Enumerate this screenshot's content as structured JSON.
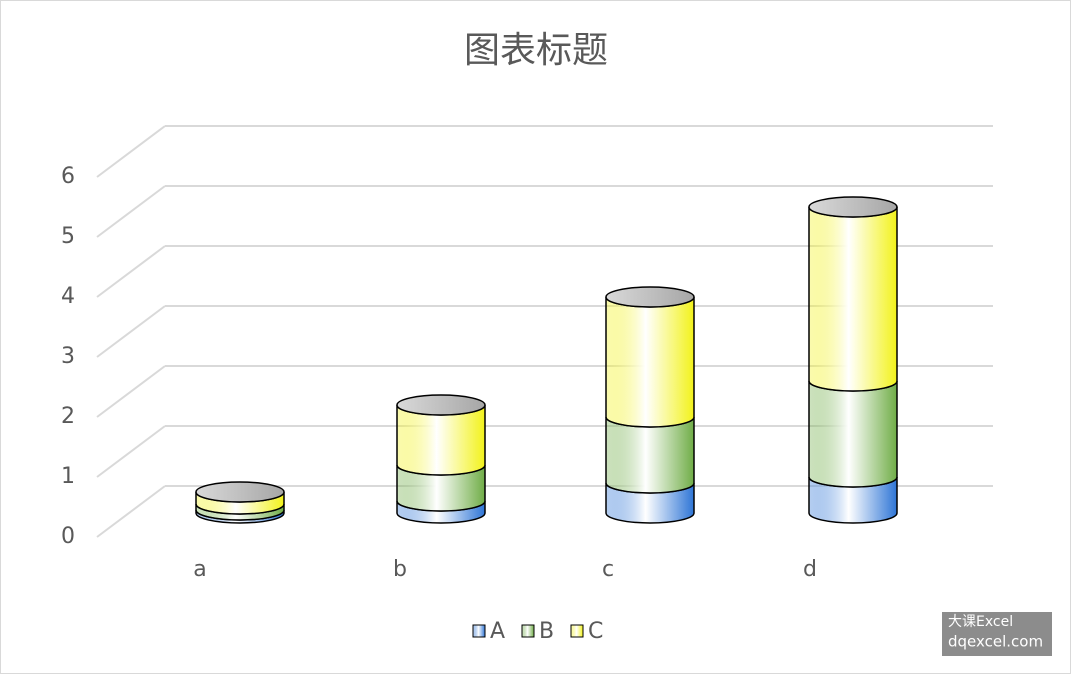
{
  "chart_data": {
    "type": "bar3d_cylinder",
    "title": "图表标题",
    "categories": [
      "a",
      "b",
      "c",
      "d"
    ],
    "series": [
      {
        "name": "A",
        "color": "#2e75d6",
        "values": [
          0.05,
          0.2,
          0.5,
          0.6
        ]
      },
      {
        "name": "B",
        "color": "#70ad47",
        "values": [
          0.1,
          0.6,
          1.1,
          1.6
        ]
      },
      {
        "name": "C",
        "color": "#f2f21a",
        "values": [
          0.2,
          1.0,
          2.0,
          2.9
        ]
      }
    ],
    "ylim": [
      0,
      6
    ],
    "yticks": [
      0,
      1,
      2,
      3,
      4,
      5,
      6
    ],
    "grid": true,
    "legend": "bottom",
    "watermark": [
      "大课Excel",
      "dqexcel.com"
    ]
  }
}
